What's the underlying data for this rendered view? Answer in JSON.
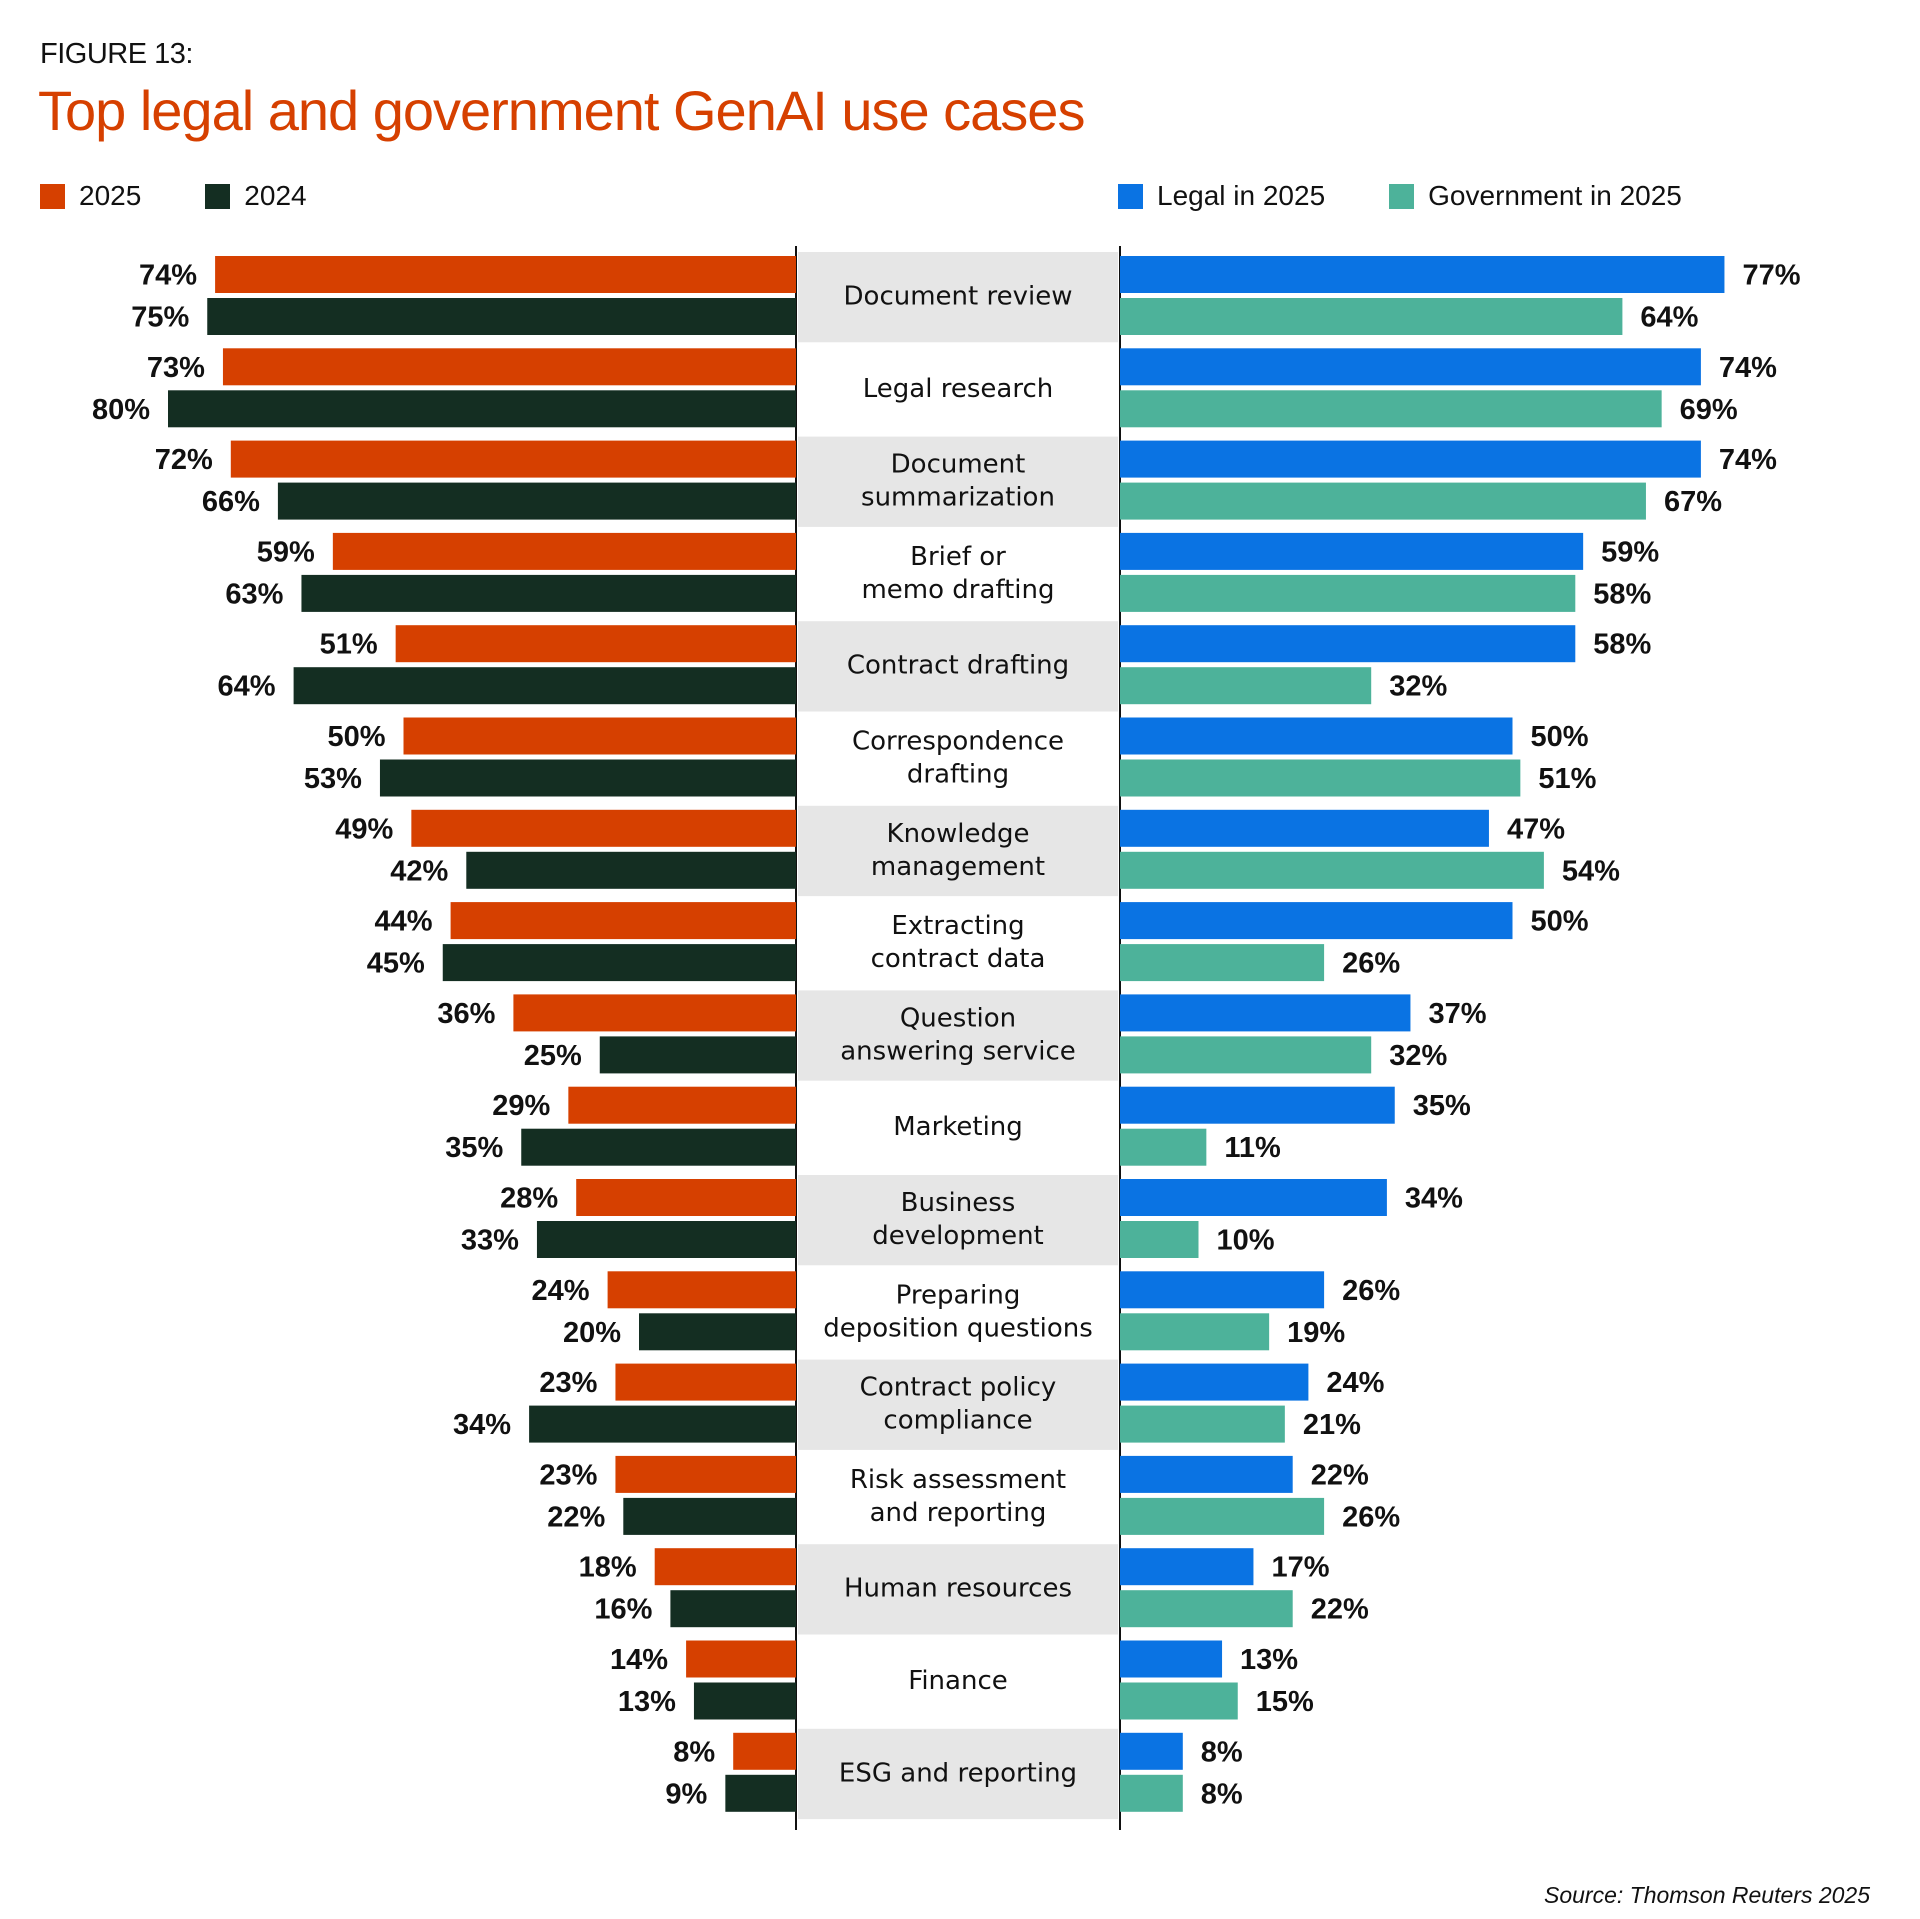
{
  "figure_label": "FIGURE 13:",
  "title": "Top legal and government GenAI use cases",
  "source": "Source: Thomson Reuters 2025",
  "legend_left": [
    {
      "label": "2025",
      "color": "#d64000"
    },
    {
      "label": "2024",
      "color": "#142e22"
    }
  ],
  "legend_right": [
    {
      "label": "Legal in 2025",
      "color": "#0a73e3"
    },
    {
      "label": "Government in 2025",
      "color": "#4db29a"
    }
  ],
  "chart_data": {
    "type": "bar",
    "title": "Top legal and government GenAI use cases",
    "layout": "diverging butterfly bar chart with central category labels",
    "value_unit": "%",
    "xlim": [
      0,
      80
    ],
    "grid": false,
    "legend_position": "top",
    "categories": [
      [
        "Document review"
      ],
      [
        "Legal research"
      ],
      [
        "Document",
        "summarization"
      ],
      [
        "Brief or",
        "memo drafting"
      ],
      [
        "Contract drafting"
      ],
      [
        "Correspondence",
        "drafting"
      ],
      [
        "Knowledge",
        "management"
      ],
      [
        "Extracting",
        "contract data"
      ],
      [
        "Question",
        "answering service"
      ],
      [
        "Marketing"
      ],
      [
        "Business",
        "development"
      ],
      [
        "Preparing",
        "deposition questions"
      ],
      [
        "Contract policy",
        "compliance"
      ],
      [
        "Risk assessment",
        "and reporting"
      ],
      [
        "Human resources"
      ],
      [
        "Finance"
      ],
      [
        "ESG and reporting"
      ]
    ],
    "left_panel": {
      "direction": "leftward",
      "series": [
        {
          "name": "2025",
          "color": "#d64000",
          "values": [
            74,
            73,
            72,
            59,
            51,
            50,
            49,
            44,
            36,
            29,
            28,
            24,
            23,
            23,
            18,
            14,
            8
          ]
        },
        {
          "name": "2024",
          "color": "#142e22",
          "values": [
            75,
            80,
            66,
            63,
            64,
            53,
            42,
            45,
            25,
            35,
            33,
            20,
            34,
            22,
            16,
            13,
            9
          ]
        }
      ]
    },
    "right_panel": {
      "direction": "rightward",
      "series": [
        {
          "name": "Legal in 2025",
          "color": "#0a73e3",
          "values": [
            77,
            74,
            74,
            59,
            58,
            50,
            47,
            50,
            37,
            35,
            34,
            26,
            24,
            22,
            17,
            13,
            8
          ]
        },
        {
          "name": "Government in 2025",
          "color": "#4db29a",
          "values": [
            64,
            69,
            67,
            58,
            32,
            51,
            54,
            26,
            32,
            11,
            10,
            19,
            21,
            26,
            22,
            15,
            8
          ]
        }
      ]
    },
    "band_colors": [
      "#e6e6e6",
      "#ffffff"
    ]
  }
}
